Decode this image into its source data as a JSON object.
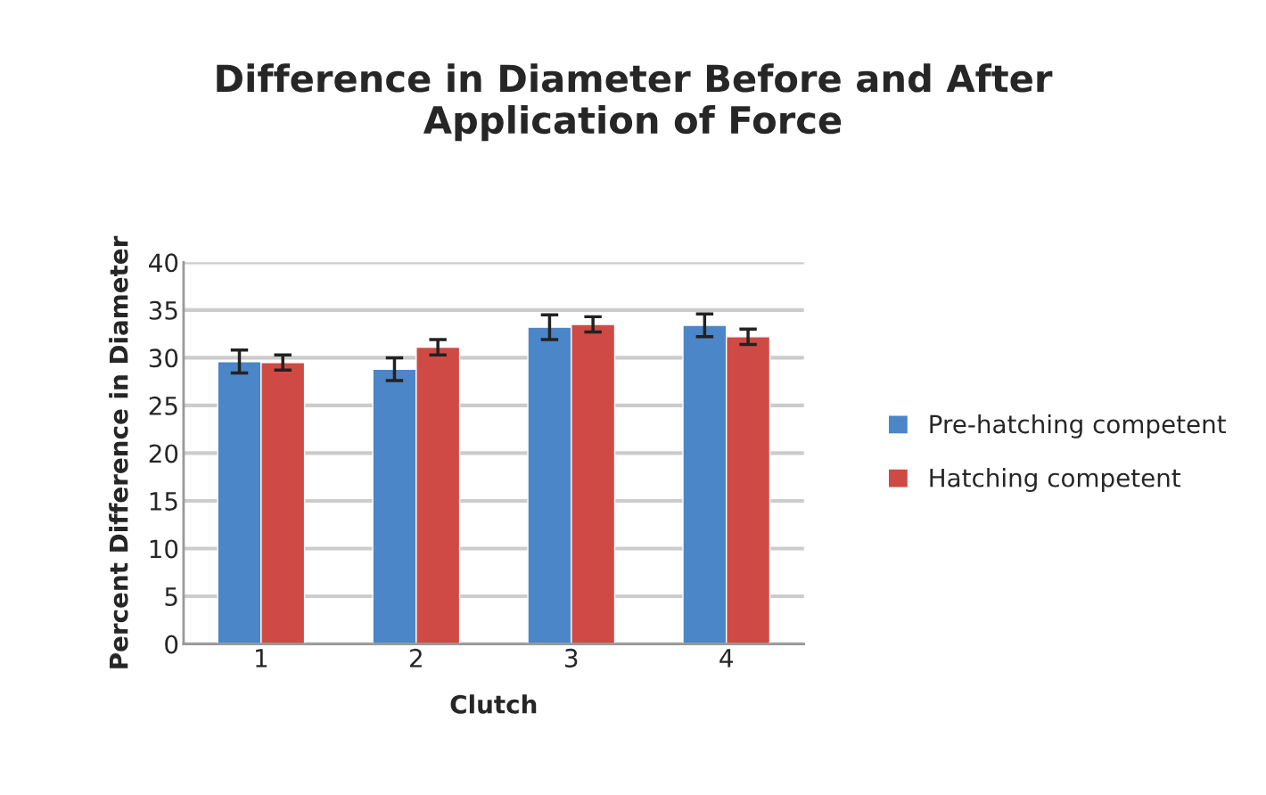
{
  "chart_data": {
    "type": "bar",
    "title": "Difference in Diameter Before and After\nApplication of Force",
    "xlabel": "Clutch",
    "ylabel": "Percent Difference in Diameter",
    "categories": [
      "1",
      "2",
      "3",
      "4"
    ],
    "series": [
      {
        "name": "Pre-hatching competent",
        "color": "#4a86c8",
        "values": [
          29.6,
          28.8,
          33.2,
          33.4
        ],
        "errors": [
          1.2,
          1.2,
          1.3,
          1.2
        ]
      },
      {
        "name": "Hatching competent",
        "color": "#cf4a44",
        "values": [
          29.5,
          31.1,
          33.5,
          32.2
        ],
        "errors": [
          0.8,
          0.8,
          0.8,
          0.8
        ]
      }
    ],
    "ylim": [
      0,
      40
    ],
    "yticks": [
      0,
      5,
      10,
      15,
      20,
      25,
      30,
      35,
      40
    ],
    "grid": "y",
    "legend": "right"
  }
}
